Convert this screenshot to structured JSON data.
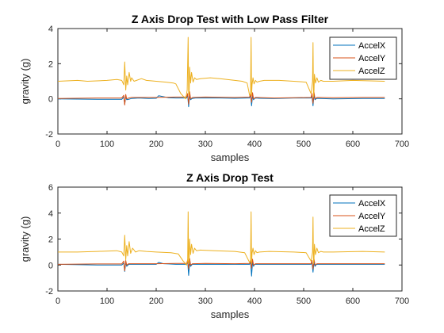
{
  "chart_data": [
    {
      "type": "line",
      "title": "Z Axis Drop Test with Low Pass Filter",
      "xlabel": "samples",
      "ylabel": "gravity (g)",
      "xlim": [
        0,
        700
      ],
      "ylim": [
        -2,
        4
      ],
      "xticks": [
        "0",
        "100",
        "200",
        "300",
        "400",
        "500",
        "600",
        "700"
      ],
      "yticks": [
        "-2",
        "0",
        "2",
        "4"
      ],
      "grid": false,
      "legend_position": "top-right",
      "series": [
        {
          "name": "AccelX",
          "color": "#0072BD",
          "x": [
            0,
            80,
            130,
            134,
            136,
            138,
            140,
            144,
            150,
            165,
            185,
            200,
            205,
            215,
            225,
            240,
            262,
            264,
            266,
            268,
            270,
            273,
            280,
            300,
            330,
            360,
            390,
            392,
            394,
            396,
            398,
            400,
            403,
            410,
            440,
            480,
            515,
            517,
            519,
            521,
            523,
            526,
            532,
            560,
            620,
            665
          ],
          "y": [
            0.0,
            -0.03,
            -0.03,
            0.1,
            -0.3,
            0.15,
            -0.05,
            -0.03,
            0.02,
            0.05,
            0.02,
            0.03,
            0.18,
            0.12,
            0.06,
            0.05,
            0.05,
            0.2,
            -0.45,
            0.2,
            -0.05,
            0.02,
            0.05,
            0.05,
            0.05,
            0.03,
            0.05,
            0.25,
            -0.4,
            0.15,
            -0.05,
            0.02,
            0.05,
            0.03,
            0.02,
            0.05,
            0.05,
            0.15,
            -0.4,
            0.2,
            -0.05,
            0.02,
            0.02,
            0.0,
            0.02,
            0.02
          ]
        },
        {
          "name": "AccelY",
          "color": "#D95319",
          "x": [
            0,
            80,
            130,
            134,
            136,
            138,
            140,
            144,
            150,
            180,
            200,
            240,
            262,
            264,
            266,
            268,
            270,
            274,
            300,
            360,
            390,
            392,
            394,
            396,
            398,
            402,
            440,
            515,
            517,
            519,
            521,
            523,
            527,
            560,
            620,
            665
          ],
          "y": [
            0.02,
            0.05,
            0.05,
            0.2,
            -0.35,
            0.25,
            0.0,
            0.05,
            0.08,
            0.08,
            0.08,
            0.1,
            0.1,
            0.3,
            -0.3,
            0.4,
            0.0,
            0.08,
            0.1,
            0.08,
            0.1,
            0.3,
            -0.2,
            0.35,
            0.0,
            0.08,
            0.05,
            0.08,
            0.3,
            -0.25,
            0.4,
            0.0,
            0.08,
            0.06,
            0.08,
            0.08
          ]
        },
        {
          "name": "AccelZ",
          "color": "#EDB120",
          "x": [
            0,
            40,
            60,
            100,
            120,
            130,
            134,
            136,
            138,
            140,
            142,
            145,
            148,
            150,
            155,
            160,
            170,
            180,
            200,
            220,
            235,
            240,
            250,
            260,
            263,
            265,
            266,
            267,
            268,
            270,
            272,
            275,
            278,
            282,
            290,
            310,
            330,
            360,
            375,
            385,
            390,
            392,
            393,
            394,
            395,
            397,
            399,
            402,
            405,
            410,
            420,
            450,
            480,
            505,
            515,
            518,
            519,
            520,
            521,
            522,
            524,
            527,
            530,
            535,
            540,
            560,
            600,
            665
          ],
          "y": [
            1.0,
            1.05,
            1.0,
            1.05,
            1.1,
            1.05,
            0.8,
            2.1,
            0.5,
            1.3,
            0.8,
            1.5,
            1.0,
            1.2,
            1.0,
            1.05,
            1.15,
            1.05,
            1.0,
            0.95,
            0.9,
            0.85,
            0.3,
            0.0,
            0.5,
            3.5,
            0.3,
            0.2,
            1.8,
            0.9,
            1.5,
            0.95,
            1.2,
            1.1,
            1.15,
            1.2,
            1.15,
            1.05,
            1.0,
            0.9,
            0.2,
            0.3,
            3.5,
            0.2,
            0.8,
            1.2,
            0.85,
            1.05,
            0.95,
            1.0,
            1.05,
            1.05,
            1.0,
            0.95,
            0.3,
            1.0,
            3.2,
            0.1,
            0.4,
            1.4,
            0.9,
            1.2,
            0.95,
            1.05,
            1.0,
            1.0,
            1.05,
            1.0
          ]
        }
      ]
    },
    {
      "type": "line",
      "title": "Z Axis Drop Test",
      "xlabel": "samples",
      "ylabel": "gravity (g)",
      "xlim": [
        0,
        700
      ],
      "ylim": [
        -2,
        6
      ],
      "xticks": [
        "0",
        "100",
        "200",
        "300",
        "400",
        "500",
        "600",
        "700"
      ],
      "yticks": [
        "-2",
        "0",
        "2",
        "4",
        "6"
      ],
      "grid": false,
      "legend_position": "top-right",
      "series": [
        {
          "name": "AccelX",
          "color": "#0072BD",
          "x": [
            0,
            80,
            130,
            134,
            136,
            138,
            140,
            144,
            150,
            180,
            200,
            205,
            215,
            225,
            240,
            262,
            264,
            266,
            268,
            270,
            273,
            280,
            300,
            360,
            390,
            392,
            394,
            396,
            398,
            400,
            403,
            440,
            515,
            517,
            519,
            521,
            523,
            526,
            560,
            620,
            665
          ],
          "y": [
            0.05,
            0.0,
            0.0,
            0.15,
            -0.5,
            0.2,
            -0.1,
            0.05,
            0.05,
            0.05,
            0.05,
            0.2,
            0.1,
            0.08,
            0.05,
            0.05,
            0.3,
            -0.8,
            0.2,
            -0.1,
            0.05,
            0.05,
            0.05,
            0.05,
            0.05,
            0.3,
            -0.85,
            0.2,
            -0.1,
            0.05,
            0.05,
            0.05,
            0.05,
            0.2,
            -0.55,
            0.2,
            -0.1,
            0.05,
            0.05,
            0.05,
            0.05
          ]
        },
        {
          "name": "AccelY",
          "color": "#D95319",
          "x": [
            0,
            80,
            130,
            134,
            136,
            138,
            140,
            144,
            150,
            200,
            240,
            262,
            264,
            266,
            268,
            270,
            274,
            300,
            360,
            390,
            392,
            394,
            396,
            398,
            402,
            440,
            515,
            517,
            519,
            521,
            523,
            527,
            560,
            665
          ],
          "y": [
            0.05,
            0.08,
            0.08,
            0.3,
            -0.45,
            0.35,
            0.0,
            0.1,
            0.1,
            0.1,
            0.12,
            0.12,
            0.4,
            -0.3,
            0.5,
            0.0,
            0.1,
            0.12,
            0.1,
            0.12,
            0.4,
            -0.25,
            0.45,
            0.0,
            0.1,
            0.1,
            0.1,
            0.35,
            -0.3,
            0.5,
            0.0,
            0.1,
            0.1,
            0.1
          ]
        },
        {
          "name": "AccelZ",
          "color": "#EDB120",
          "x": [
            0,
            40,
            80,
            120,
            130,
            134,
            136,
            138,
            140,
            142,
            145,
            148,
            152,
            158,
            165,
            180,
            200,
            230,
            245,
            255,
            262,
            264,
            265,
            266,
            267,
            268,
            270,
            272,
            275,
            278,
            282,
            290,
            320,
            360,
            380,
            390,
            392,
            393,
            394,
            395,
            397,
            399,
            402,
            405,
            410,
            430,
            480,
            505,
            515,
            518,
            519,
            520,
            521,
            522,
            524,
            527,
            530,
            535,
            540,
            560,
            620,
            665
          ],
          "y": [
            1.0,
            1.0,
            1.05,
            1.1,
            1.0,
            0.7,
            2.3,
            0.4,
            1.5,
            0.7,
            1.8,
            0.9,
            1.3,
            1.0,
            1.1,
            1.05,
            1.0,
            0.95,
            0.85,
            0.3,
            0.0,
            0.4,
            4.1,
            0.2,
            0.1,
            2.0,
            0.8,
            1.6,
            0.9,
            1.3,
            1.1,
            1.15,
            1.1,
            1.05,
            0.95,
            0.2,
            0.3,
            4.1,
            0.1,
            0.9,
            1.3,
            0.8,
            1.1,
            0.95,
            1.0,
            1.05,
            1.0,
            0.95,
            0.3,
            1.0,
            3.7,
            0.1,
            0.4,
            1.6,
            0.8,
            1.3,
            0.95,
            1.05,
            1.0,
            1.0,
            1.05,
            1.0
          ]
        }
      ]
    }
  ]
}
